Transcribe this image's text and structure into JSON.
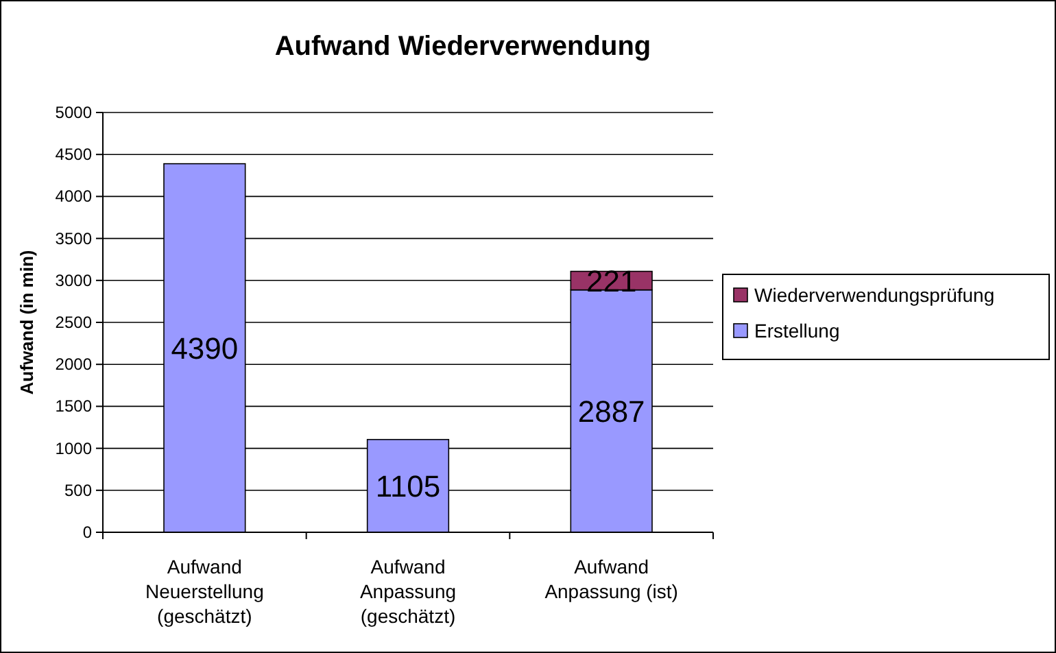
{
  "chart_data": {
    "type": "bar",
    "title": "Aufwand Wiederverwendung",
    "ylabel": "Aufwand (in min)",
    "categories": [
      "Aufwand\nNeuerstellung\n(geschätzt)",
      "Aufwand\nAnpassung\n(geschätzt)",
      "Aufwand\nAnpassung (ist)"
    ],
    "stacked": true,
    "data_labels": true,
    "grid": "y",
    "legend": "right",
    "ylim": [
      0,
      5000
    ],
    "yticks": [
      0,
      500,
      1000,
      1500,
      2000,
      2500,
      3000,
      3500,
      4000,
      4500,
      5000
    ],
    "series": [
      {
        "name": "Erstellung",
        "color": "#9999ff",
        "values": [
          4390,
          1105,
          2887
        ]
      },
      {
        "name": "Wiederverwendungsprüfung",
        "color": "#993366",
        "values": [
          null,
          null,
          221
        ]
      }
    ]
  }
}
